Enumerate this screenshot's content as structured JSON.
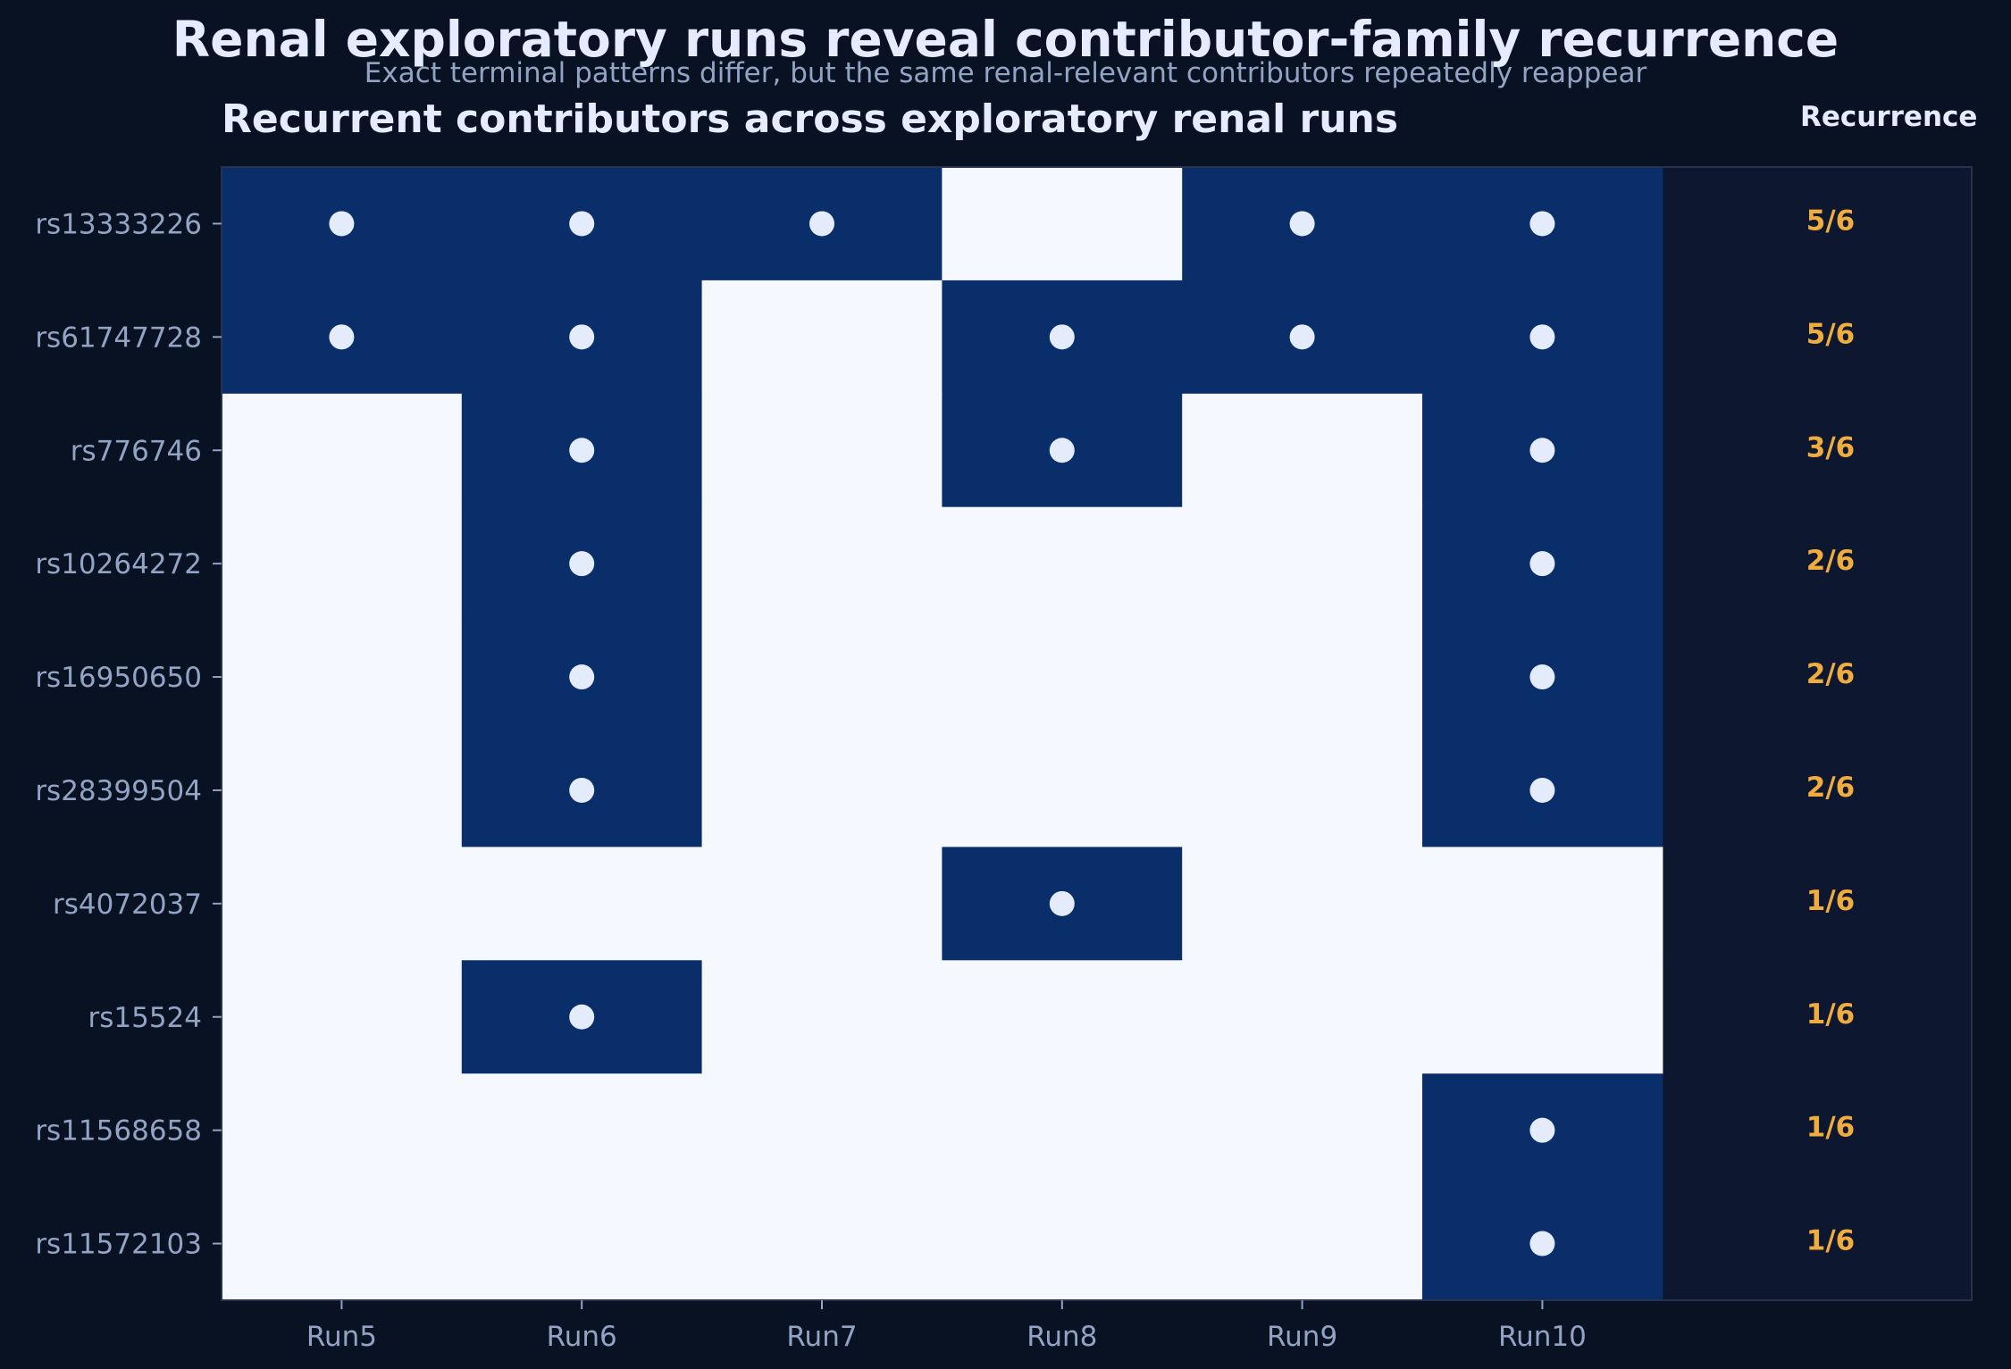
{
  "title": "Renal exploratory runs reveal contributor-family recurrence",
  "subtitle": "Exact terminal patterns differ, but the same renal-relevant contributors repeatedly reappear",
  "panel_title": "Recurrent contributors across exploratory renal runs",
  "recurrence_header": "Recurrence",
  "colors": {
    "background": "#081223",
    "present": "#0a2e69",
    "absent": "#f5f9ff",
    "dot": "#e4ebfb",
    "recurrence_panel": "#0d1830",
    "recurrence_text": "#f0ad3e",
    "tick_label": "#93a3c4",
    "title": "#e6ecff"
  },
  "chart_data": {
    "type": "heatmap",
    "title": "Recurrent contributors across exploratory renal runs",
    "columns": [
      "Run5",
      "Run6",
      "Run7",
      "Run8",
      "Run9",
      "Run10"
    ],
    "rows": [
      {
        "label": "rs13333226",
        "presence": [
          1,
          1,
          1,
          0,
          1,
          1
        ],
        "recurrence": "5/6"
      },
      {
        "label": "rs61747728",
        "presence": [
          1,
          1,
          0,
          1,
          1,
          1
        ],
        "recurrence": "5/6"
      },
      {
        "label": "rs776746",
        "presence": [
          0,
          1,
          0,
          1,
          0,
          1
        ],
        "recurrence": "3/6"
      },
      {
        "label": "rs10264272",
        "presence": [
          0,
          1,
          0,
          0,
          0,
          1
        ],
        "recurrence": "2/6"
      },
      {
        "label": "rs16950650",
        "presence": [
          0,
          1,
          0,
          0,
          0,
          1
        ],
        "recurrence": "2/6"
      },
      {
        "label": "rs28399504",
        "presence": [
          0,
          1,
          0,
          0,
          0,
          1
        ],
        "recurrence": "2/6"
      },
      {
        "label": "rs4072037",
        "presence": [
          0,
          0,
          0,
          1,
          0,
          0
        ],
        "recurrence": "1/6"
      },
      {
        "label": "rs15524",
        "presence": [
          0,
          1,
          0,
          0,
          0,
          0
        ],
        "recurrence": "1/6"
      },
      {
        "label": "rs11568658",
        "presence": [
          0,
          0,
          0,
          0,
          0,
          1
        ],
        "recurrence": "1/6"
      },
      {
        "label": "rs11572103",
        "presence": [
          0,
          0,
          0,
          0,
          0,
          1
        ],
        "recurrence": "1/6"
      }
    ],
    "recurrence_label": "Recurrence",
    "legend": "none",
    "grid": false
  }
}
